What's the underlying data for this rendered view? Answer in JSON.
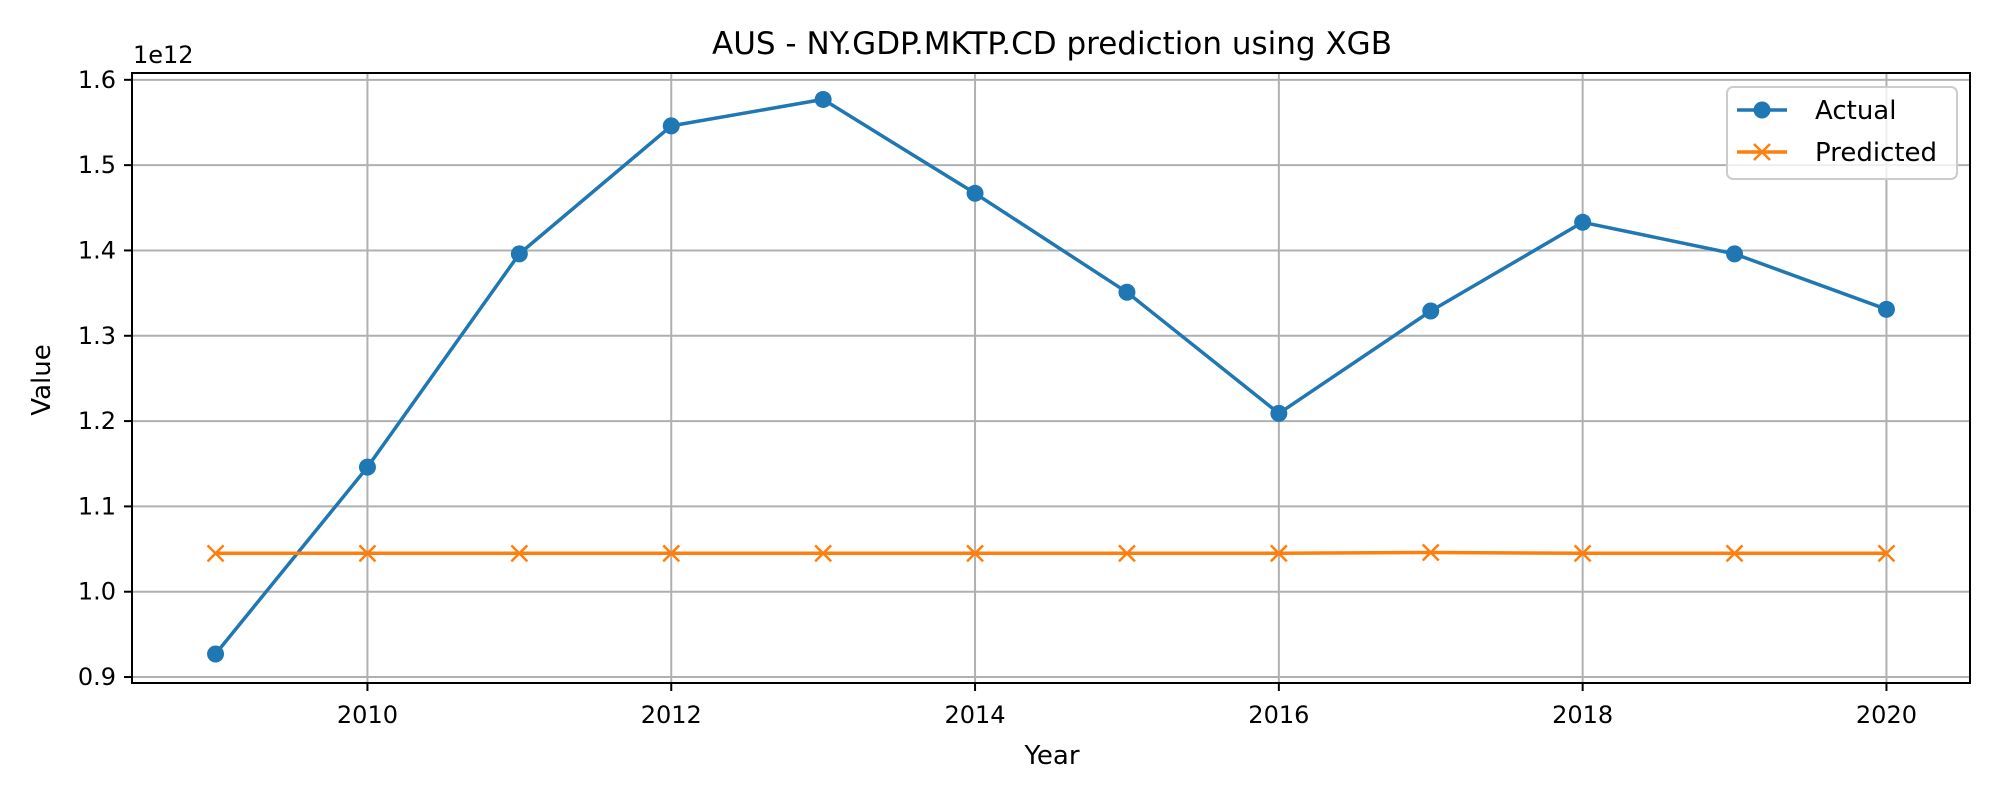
{
  "chart_data": {
    "type": "line",
    "title": "AUS - NY.GDP.MKTP.CD prediction using XGB",
    "xlabel": "Year",
    "ylabel": "Value",
    "y_offset_label": "1e12",
    "xlim": [
      2008.45,
      2020.55
    ],
    "ylim": [
      0.893,
      1.608
    ],
    "x_ticks": [
      2010,
      2012,
      2014,
      2016,
      2018,
      2020
    ],
    "x_tick_labels": [
      "2010",
      "2012",
      "2014",
      "2016",
      "2018",
      "2020"
    ],
    "y_ticks": [
      0.9,
      1.0,
      1.1,
      1.2,
      1.3,
      1.4,
      1.5,
      1.6
    ],
    "y_tick_labels": [
      "0.9",
      "1.0",
      "1.1",
      "1.2",
      "1.3",
      "1.4",
      "1.5",
      "1.6"
    ],
    "grid": true,
    "legend_position": "top-right",
    "x": [
      2009,
      2010,
      2011,
      2012,
      2013,
      2014,
      2015,
      2016,
      2017,
      2018,
      2019,
      2020
    ],
    "series": [
      {
        "name": "Actual",
        "color": "#1f77b4",
        "marker": "circle",
        "values": [
          0.927,
          1.146,
          1.396,
          1.546,
          1.577,
          1.467,
          1.351,
          1.209,
          1.329,
          1.433,
          1.396,
          1.331
        ]
      },
      {
        "name": "Predicted",
        "color": "#ff7f0e",
        "marker": "x",
        "values": [
          1.045,
          1.045,
          1.045,
          1.045,
          1.045,
          1.045,
          1.045,
          1.045,
          1.046,
          1.045,
          1.045,
          1.045
        ]
      }
    ]
  }
}
